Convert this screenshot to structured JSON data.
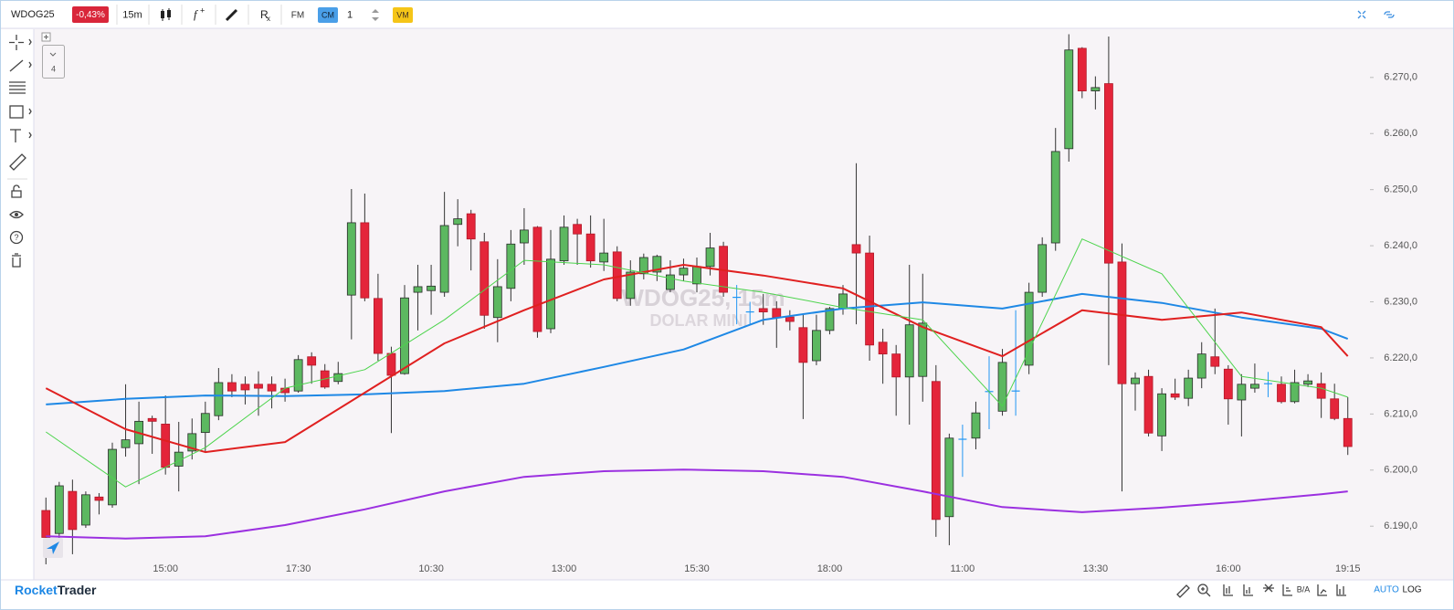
{
  "toolbar": {
    "symbol": "WDOG25",
    "change": "-0,43%",
    "timeframe": "15m",
    "fm": "FM",
    "cm": "CM",
    "quantity": "1",
    "vm": "VM"
  },
  "sidebar": {
    "layers": "4"
  },
  "chart_data": {
    "type": "candlestick",
    "watermark": [
      "WDOG25, 15m",
      "DOLAR MINI"
    ],
    "categories": [
      null,
      null,
      null,
      null,
      null,
      null,
      null,
      null,
      null,
      "15:00",
      null,
      null,
      null,
      null,
      null,
      null,
      null,
      null,
      null,
      "17:30",
      null,
      null,
      null,
      null,
      null,
      null,
      null,
      null,
      null,
      "10:30",
      null,
      null,
      null,
      null,
      null,
      null,
      null,
      null,
      null,
      "13:00",
      null,
      null,
      null,
      null,
      null,
      null,
      null,
      null,
      null,
      "15:30",
      null,
      null,
      null,
      null,
      null,
      null,
      null,
      null,
      null,
      "18:00",
      null,
      null,
      null,
      null,
      null,
      null,
      null,
      null,
      null,
      "11:00",
      null,
      null,
      null,
      null,
      null,
      null,
      null,
      null,
      null,
      "13:30",
      null,
      null,
      null,
      null,
      null,
      null,
      null,
      null,
      null,
      "16:00",
      null,
      null,
      null,
      null,
      null,
      null,
      null,
      null,
      "19:15"
    ],
    "open": [
      6192.8,
      6188.7,
      6196.2,
      6190.2,
      6195.2,
      6193.8,
      6204,
      6204.7,
      6209.2,
      6208.2,
      6200.7,
      6203.4,
      6206.7,
      6209.7,
      6215.6,
      6215.3,
      6215.3,
      6215.3,
      6214.6,
      6214.1,
      6220.2,
      6217.7,
      6215.8,
      6231.2,
      6244.1,
      6230.6,
      6220.8,
      6217.2,
      6231.7,
      6232,
      6231.7,
      6243.8,
      6245.7,
      6240.7,
      6227.2,
      6232.4,
      6240.5,
      6243.3,
      6225.2,
      6237.3,
      6243.8,
      6242.1,
      6237.1,
      6238.9,
      6230.6,
      6235,
      6235.3,
      6232.2,
      6234.8,
      6233.2,
      6236.3,
      6239.9,
      6230.8,
      6228.2,
      6228.8,
      6228.8,
      6227.3,
      6225.4,
      6219.5,
      6224.9,
      6228.8,
      6240.2,
      6238.7,
      6222.8,
      6220.7,
      6216.6,
      6216.7,
      6215.8,
      6191.7,
      6205.5,
      6205.7,
      6214,
      6210.5,
      6214.1,
      6218.7,
      6231.7,
      6240.5,
      6257.3,
      6275.2,
      6267.6,
      6268.9,
      6237.1,
      6215.4,
      6216.7,
      6206.1,
      6213.6,
      6212.8,
      6216.4,
      6220.2,
      6218,
      6212.5,
      6214.6,
      6215.4,
      6215.3,
      6212.2,
      6215.3,
      6215.4,
      6212.7,
      6209.2
    ],
    "high": [
      6195.1,
      6197.9,
      6198.3,
      6196.2,
      6195.9,
      6204.9,
      6215.3,
      6212.2,
      6209.7,
      6213.3,
      6208.6,
      6209.2,
      6212.2,
      6218.2,
      6217.1,
      6216.7,
      6217.6,
      6216.7,
      6216.3,
      6220.5,
      6221,
      6218.9,
      6219.3,
      6250.1,
      6249.3,
      6235,
      6222,
      6233,
      6236.6,
      6236.6,
      6249.6,
      6248.3,
      6246.4,
      6242.3,
      6237.6,
      6242.8,
      6246.7,
      6243.5,
      6242.8,
      6245.4,
      6244.8,
      6245.4,
      6244.8,
      6239.9,
      6237.4,
      6238.6,
      6238.4,
      6237.4,
      6237.7,
      6237.9,
      6242.3,
      6240.7,
      6233,
      6230,
      6231.4,
      6230.1,
      6228.5,
      6227.7,
      6227.7,
      6229.1,
      6233,
      6254.7,
      6241.8,
      6225.2,
      6222.3,
      6236.6,
      6235,
      6218.7,
      6206.5,
      6208.1,
      6212.2,
      6220.3,
      6221.6,
      6228.5,
      6233.4,
      6241.5,
      6261,
      6277.7,
      6275.4,
      6270.2,
      6277.3,
      6240.4,
      6217.4,
      6217.9,
      6214.6,
      6216.3,
      6217.9,
      6222.8,
      6228.8,
      6218.7,
      6217.1,
      6219,
      6217.5,
      6216.7,
      6217.9,
      6217.1,
      6217.4,
      6215.4,
      6213
    ],
    "low": [
      6183.2,
      6187.8,
      6185,
      6189.7,
      6192.1,
      6193.3,
      6202.4,
      6197.5,
      6202.9,
      6199.2,
      6196.2,
      6201.9,
      6203.2,
      6208.9,
      6213,
      6211.7,
      6209.7,
      6211,
      6212.2,
      6213.8,
      6215.4,
      6214.5,
      6215.3,
      6223.3,
      6230.1,
      6219.5,
      6206.6,
      6217,
      6224.9,
      6227.7,
      6230.9,
      6239.9,
      6235.6,
      6225.2,
      6222.8,
      6230.1,
      6236.6,
      6223.6,
      6224.4,
      6236.6,
      6236.6,
      6236.1,
      6235.5,
      6230.1,
      6229.3,
      6234,
      6233.7,
      6231.7,
      6233.7,
      6231.7,
      6234.7,
      6230.9,
      6226,
      6226,
      6225.9,
      6221.8,
      6224.9,
      6209.1,
      6218.7,
      6224.2,
      6227.7,
      6226,
      6219.5,
      6215.4,
      6209.7,
      6208.1,
      6212.2,
      6188.1,
      6186.6,
      6198.8,
      6203.7,
      6207.3,
      6209.7,
      6209.7,
      6217.1,
      6230.9,
      6239.1,
      6255,
      6266.3,
      6264.3,
      6218.7,
      6196.2,
      6210.6,
      6206,
      6203.4,
      6212.5,
      6211.4,
      6214.6,
      6217.1,
      6208.1,
      6206,
      6213.8,
      6213,
      6211.9,
      6211.9,
      6214.8,
      6209.3,
      6208.9,
      6202.7
    ],
    "close": [
      6188,
      6197.2,
      6189.4,
      6195.6,
      6194.6,
      6203.7,
      6205.4,
      6208.7,
      6208.7,
      6200.5,
      6203.2,
      6206.5,
      6210.1,
      6215.6,
      6214.1,
      6214.3,
      6214.6,
      6214.1,
      6213.8,
      6219.7,
      6218.7,
      6214.8,
      6217.2,
      6244.1,
      6230.7,
      6220.8,
      6216.9,
      6230.7,
      6232.7,
      6232.8,
      6243.6,
      6244.8,
      6241.2,
      6227.6,
      6232.7,
      6240.3,
      6242.8,
      6224.7,
      6237.6,
      6243.3,
      6242.1,
      6237.3,
      6238.7,
      6230.6,
      6235.3,
      6237.9,
      6238.1,
      6234.8,
      6236,
      6236.3,
      6239.6,
      6231.7,
      6230.8,
      6228.2,
      6228.2,
      6227.2,
      6226.5,
      6219.2,
      6224.9,
      6228.8,
      6231.4,
      6238.7,
      6222.3,
      6220.7,
      6216.6,
      6225.9,
      6226.2,
      6191.2,
      6205.7,
      6205.5,
      6210.2,
      6214,
      6219.2,
      6214.1,
      6231.7,
      6240.2,
      6256.8,
      6274.9,
      6267.6,
      6268.2,
      6236.9,
      6215.4,
      6216.4,
      6206.6,
      6213.6,
      6213,
      6216.4,
      6220.7,
      6218.5,
      6212.7,
      6215.3,
      6215.3,
      6215.4,
      6212.2,
      6215.6,
      6215.9,
      6212.8,
      6209.2,
      6204.2
    ],
    "up_color": "#5cb860",
    "down_color": "#e4253a",
    "doji_color": "#2196f3",
    "wick_color": "#333333",
    "series": [
      {
        "color": "#9b30e0",
        "width": 2,
        "x": [
          0,
          6,
          12,
          18,
          24,
          30,
          36,
          42,
          48,
          54,
          60,
          66,
          72,
          78,
          84,
          90,
          96,
          98
        ],
        "values": [
          6188.2,
          6187.8,
          6188.2,
          6190.2,
          6193,
          6196.2,
          6198.8,
          6199.8,
          6200.1,
          6199.8,
          6198.8,
          6196.2,
          6193.4,
          6192.5,
          6193.3,
          6194.4,
          6195.7,
          6196.2
        ]
      },
      {
        "color": "#1e88e5",
        "width": 2,
        "x": [
          0,
          6,
          12,
          18,
          24,
          30,
          36,
          42,
          48,
          54,
          60,
          66,
          72,
          78,
          84,
          90,
          96,
          98
        ],
        "values": [
          6211.7,
          6212.7,
          6213.3,
          6213.2,
          6213.5,
          6214.1,
          6215.4,
          6218.4,
          6221.5,
          6226.8,
          6228.8,
          6229.9,
          6228.8,
          6231.4,
          6229.8,
          6227.2,
          6225.2,
          6223.4
        ]
      },
      {
        "color": "#e02020",
        "width": 2,
        "x": [
          0,
          6,
          12,
          18,
          24,
          30,
          36,
          42,
          48,
          54,
          60,
          66,
          72,
          78,
          84,
          90,
          96,
          98
        ],
        "values": [
          6214.6,
          6207.3,
          6203.2,
          6205,
          6213.8,
          6222.6,
          6228.5,
          6234,
          6236.6,
          6234.7,
          6232.4,
          6225.5,
          6220.3,
          6228.5,
          6226.8,
          6228.1,
          6225.5,
          6220.3
        ]
      },
      {
        "color": "#4cd44c",
        "width": 1,
        "x": [
          0,
          6,
          12,
          18,
          24,
          30,
          36,
          42,
          48,
          54,
          60,
          66,
          72,
          78,
          84,
          90,
          96,
          98
        ],
        "values": [
          6206.8,
          6197,
          6204,
          6214.6,
          6217.9,
          6226.8,
          6237.4,
          6236.6,
          6233.7,
          6231.7,
          6229,
          6226.8,
          6211.4,
          6241.2,
          6235,
          6216.7,
          6214.6,
          6213
        ]
      }
    ],
    "ylim": [
      6184.5,
      6278.6
    ],
    "yticks": [
      {
        "value": 6190,
        "label": "6.190,0"
      },
      {
        "value": 6200,
        "label": "6.200,0"
      },
      {
        "value": 6210,
        "label": "6.210,0"
      },
      {
        "value": 6220,
        "label": "6.220,0"
      },
      {
        "value": 6230,
        "label": "6.230,0"
      },
      {
        "value": 6240,
        "label": "6.240,0"
      },
      {
        "value": 6250,
        "label": "6.250,0"
      },
      {
        "value": 6260,
        "label": "6.260,0"
      },
      {
        "value": 6270,
        "label": "6.270,0"
      }
    ]
  },
  "footer": {
    "brand_1": "Rocket",
    "brand_2": "Trader",
    "ba": "B/A",
    "auto": "AUTO",
    "log": "LOG"
  }
}
